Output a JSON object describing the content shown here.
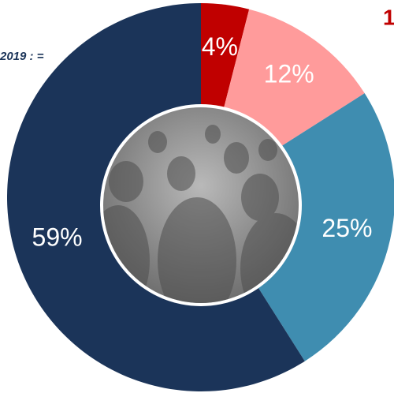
{
  "chart_data": {
    "type": "pie",
    "donut": true,
    "values": [
      4,
      12,
      25,
      59
    ],
    "value_labels": [
      "4%",
      "12%",
      "25%",
      "59%"
    ],
    "colors": [
      "#c00000",
      "#ff9b9b",
      "#3f8db0",
      "#1b3459"
    ],
    "annotations": [
      "2019 : =",
      "1"
    ]
  }
}
